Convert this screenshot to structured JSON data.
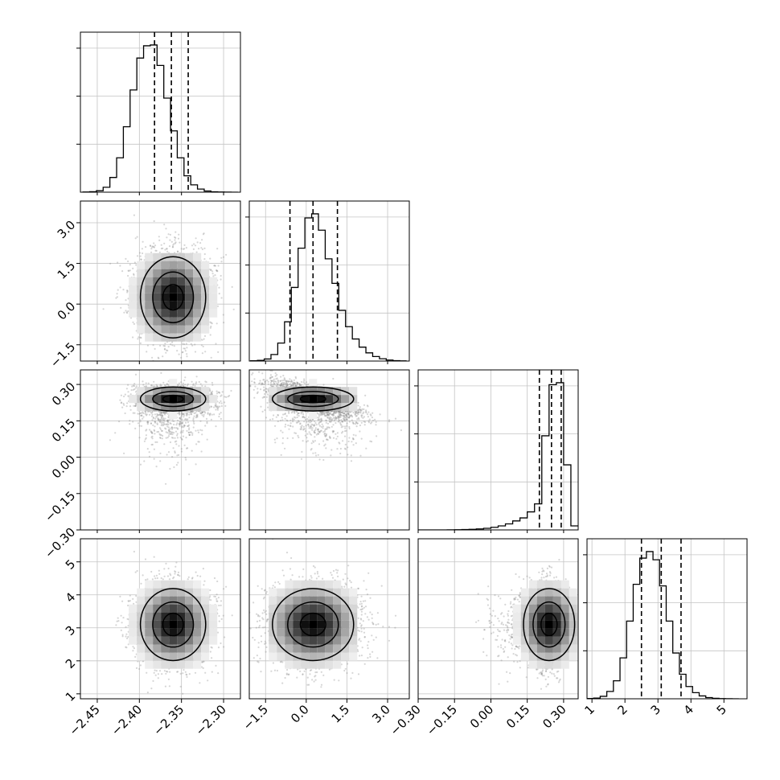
{
  "chart_data": {
    "type": "corner",
    "title": "",
    "n_params": 4,
    "params": [
      {
        "label": "",
        "range": [
          -2.47,
          -2.28
        ],
        "ticks": [
          "−2.45",
          "−2.40",
          "−2.35",
          "−2.30"
        ],
        "tick_values": [
          -2.45,
          -2.4,
          -2.35,
          -2.3
        ],
        "mean": -2.36,
        "std": 0.022,
        "quantiles": [
          -2.382,
          -2.362,
          -2.342
        ]
      },
      {
        "label": "",
        "range": [
          -2.1,
          3.8
        ],
        "ticks": [
          "−1.5",
          "0.0",
          "1.5",
          "3.0"
        ],
        "tick_values": [
          -1.5,
          0.0,
          1.5,
          3.0
        ],
        "mean": 0.25,
        "std": 0.85,
        "quantiles": [
          -0.6,
          0.25,
          1.15
        ]
      },
      {
        "label": "",
        "range": [
          -0.3,
          0.36
        ],
        "ticks": [
          "−0.30",
          "−0.15",
          "0.00",
          "0.15",
          "0.30"
        ],
        "tick_values": [
          -0.3,
          -0.15,
          0.0,
          0.15,
          0.3
        ],
        "mean": 0.24,
        "std": 0.06,
        "quantiles": [
          0.2,
          0.25,
          0.29
        ]
      },
      {
        "label": "",
        "range": [
          0.85,
          5.7
        ],
        "ticks": [
          "1",
          "2",
          "3",
          "4",
          "5"
        ],
        "tick_values": [
          1,
          2,
          3,
          4,
          5
        ],
        "mean": 3.1,
        "std": 0.62,
        "quantiles": [
          2.5,
          3.1,
          3.7
        ]
      }
    ],
    "histograms": [
      {
        "param": 0,
        "bin_edges": [
          -2.467,
          -2.459,
          -2.451,
          -2.443,
          -2.435,
          -2.427,
          -2.419,
          -2.411,
          -2.403,
          -2.395,
          -2.387,
          -2.379,
          -2.371,
          -2.363,
          -2.355,
          -2.347,
          -2.339,
          -2.331,
          -2.323,
          -2.315,
          -2.307,
          -2.299,
          -2.291,
          -2.283
        ],
        "counts": [
          2,
          6,
          18,
          60,
          180,
          420,
          800,
          1250,
          1640,
          1790,
          1800,
          1550,
          1150,
          750,
          420,
          200,
          90,
          38,
          14,
          5,
          2,
          1,
          0
        ]
      },
      {
        "param": 1,
        "bin_edges": [
          -2.05,
          -1.8,
          -1.55,
          -1.3,
          -1.05,
          -0.8,
          -0.55,
          -0.3,
          -0.05,
          0.2,
          0.45,
          0.7,
          0.95,
          1.2,
          1.45,
          1.7,
          1.95,
          2.2,
          2.45,
          2.7,
          2.95,
          3.2,
          3.45,
          3.7
        ],
        "counts": [
          3,
          8,
          25,
          80,
          220,
          480,
          900,
          1380,
          1750,
          1800,
          1600,
          1250,
          950,
          620,
          420,
          270,
          170,
          100,
          55,
          28,
          12,
          5,
          2
        ]
      },
      {
        "param": 2,
        "bin_edges": [
          -0.3,
          -0.27,
          -0.24,
          -0.21,
          -0.18,
          -0.15,
          -0.12,
          -0.09,
          -0.06,
          -0.03,
          0.0,
          0.03,
          0.06,
          0.09,
          0.12,
          0.15,
          0.18,
          0.21,
          0.24,
          0.27,
          0.3,
          0.33,
          0.36
        ],
        "counts": [
          0,
          0,
          0,
          0,
          1,
          2,
          4,
          6,
          10,
          16,
          26,
          40,
          60,
          90,
          120,
          180,
          260,
          940,
          1450,
          1470,
          650,
          40
        ]
      },
      {
        "param": 3,
        "bin_edges": [
          0.85,
          1.05,
          1.25,
          1.45,
          1.65,
          1.85,
          2.05,
          2.25,
          2.45,
          2.65,
          2.85,
          3.05,
          3.25,
          3.45,
          3.65,
          3.85,
          4.05,
          4.25,
          4.45,
          4.65,
          4.85,
          5.05,
          5.25,
          5.45
        ],
        "counts": [
          3,
          8,
          30,
          90,
          220,
          500,
          950,
          1400,
          1720,
          1800,
          1700,
          1380,
          950,
          560,
          300,
          150,
          75,
          35,
          15,
          6,
          2,
          1,
          0
        ]
      }
    ],
    "pairs": [
      {
        "x": 0,
        "y": 1,
        "correlation": 0.0
      },
      {
        "x": 0,
        "y": 2,
        "correlation": 0.0
      },
      {
        "x": 1,
        "y": 2,
        "correlation": -0.45
      },
      {
        "x": 0,
        "y": 3,
        "correlation": 0.0
      },
      {
        "x": 1,
        "y": 3,
        "correlation": 0.05
      },
      {
        "x": 2,
        "y": 3,
        "correlation": 0.05
      }
    ],
    "contour_levels": 3,
    "grid": true,
    "colors": {
      "points": "#8a8a8a",
      "contour": "#000000",
      "hist": "#000000",
      "grid": "#c4c4c4",
      "density_max": "#000000"
    }
  }
}
